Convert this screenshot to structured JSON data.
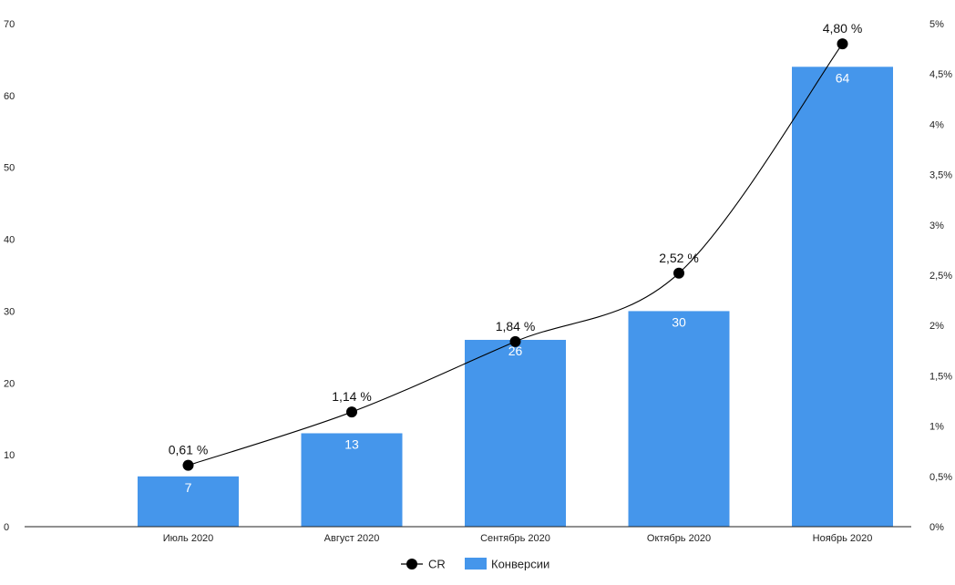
{
  "chart_data": {
    "type": "bar",
    "categories": [
      "Июль 2020",
      "Август 2020",
      "Сентябрь 2020",
      "Октябрь 2020",
      "Ноябрь 2020"
    ],
    "series": [
      {
        "name": "Конверсии",
        "type": "bar",
        "axis": "left",
        "color": "#4596eb",
        "values": [
          7,
          13,
          26,
          30,
          64
        ],
        "labels": [
          "7",
          "13",
          "26",
          "30",
          "64"
        ]
      },
      {
        "name": "CR",
        "type": "line",
        "axis": "right",
        "color": "#000000",
        "values": [
          0.61,
          1.14,
          1.84,
          2.52,
          4.8
        ],
        "labels": [
          "0,61 %",
          "1,14 %",
          "1,84 %",
          "2,52 %",
          "4,80 %"
        ]
      }
    ],
    "ylim_left": [
      0,
      70
    ],
    "yticks_left": [
      "0",
      "10",
      "20",
      "30",
      "40",
      "50",
      "60",
      "70"
    ],
    "ylim_right": [
      0,
      5
    ],
    "yticks_right": [
      "0%",
      "0,5%",
      "1%",
      "1,5%",
      "2%",
      "2,5%",
      "3%",
      "3,5%",
      "4%",
      "4,5%",
      "5%"
    ],
    "legend": {
      "placement": "bottom",
      "items": [
        "CR",
        "Конверсии"
      ]
    },
    "grid": false
  }
}
